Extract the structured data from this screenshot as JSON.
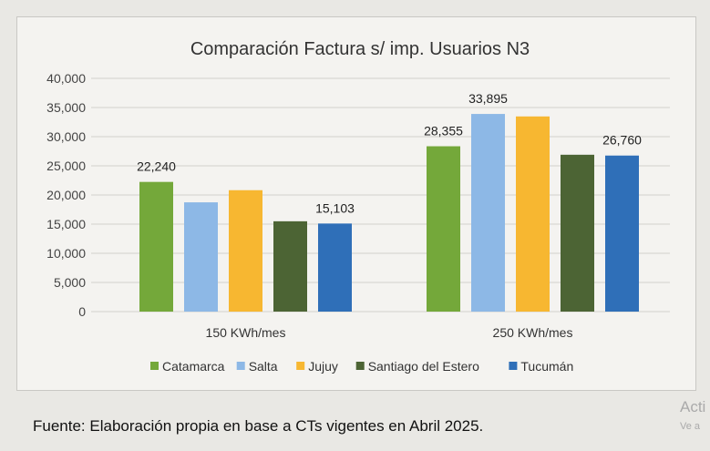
{
  "chart_data": {
    "type": "bar",
    "title": "Comparación Factura s/ imp. Usuarios N3",
    "categories": [
      "150 KWh/mes",
      "250 KWh/mes"
    ],
    "series": [
      {
        "name": "Catamarca",
        "color": "#74a83a",
        "values": [
          22240,
          28355
        ],
        "labels": [
          "22,240",
          "28,355"
        ]
      },
      {
        "name": "Salta",
        "color": "#8db8e6",
        "values": [
          18740,
          33895
        ],
        "labels": [
          "",
          "33,895"
        ]
      },
      {
        "name": "Jujuy",
        "color": "#f7b731",
        "values": [
          20820,
          33470
        ],
        "labels": [
          "",
          ""
        ]
      },
      {
        "name": "Santiago del Estero",
        "color": "#4c6434",
        "values": [
          15490,
          26900
        ],
        "labels": [
          "",
          ""
        ]
      },
      {
        "name": "Tucumán",
        "color": "#2f6fb8",
        "values": [
          15103,
          26760
        ],
        "labels": [
          "15,103",
          "26,760"
        ]
      }
    ],
    "ylim": [
      0,
      40000
    ],
    "yticks": [
      "0",
      "5,000",
      "10,000",
      "15,000",
      "20,000",
      "25,000",
      "30,000",
      "35,000",
      "40,000"
    ],
    "grid": true,
    "legend": "bottom"
  },
  "footer": "Fuente: Elaboración propia en base a CTs vigentes en Abril 2025.",
  "watermark": {
    "line1": "Acti",
    "line2": "Ve a"
  }
}
